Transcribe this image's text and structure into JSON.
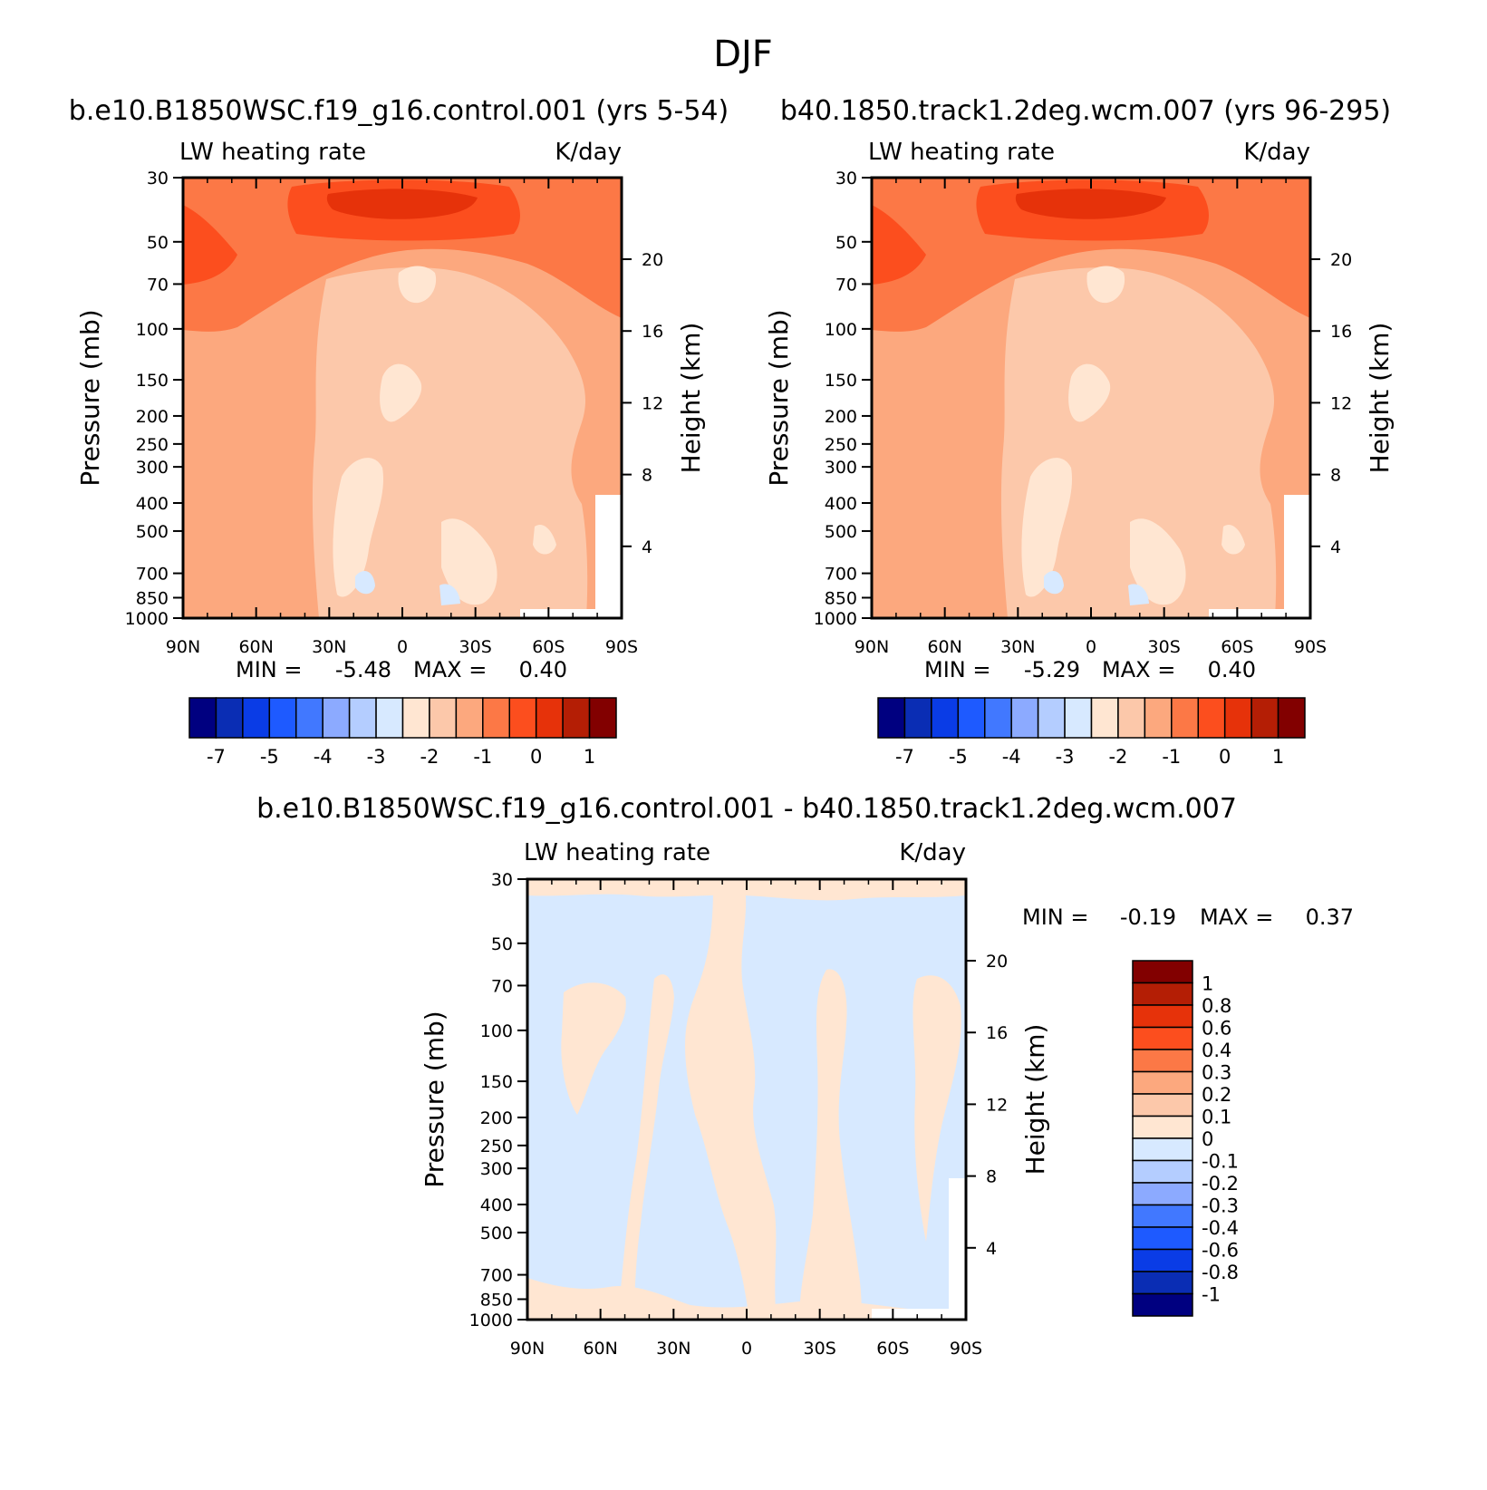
{
  "figure_title": "DJF",
  "chart_data": [
    {
      "type": "heatmap",
      "id": "panel1",
      "title": "b.e10.B1850WSC.f19_g16.control.001 (yrs 5-54)",
      "left_label": "LW heating rate",
      "right_label": "K/day",
      "xlabel": "",
      "ylabel": "Pressure (mb)",
      "y2label": "Height (km)",
      "x_ticks": [
        "90N",
        "60N",
        "30N",
        "0",
        "30S",
        "60S",
        "90S"
      ],
      "y_ticks": [
        "30",
        "50",
        "70",
        "100",
        "150",
        "200",
        "250",
        "300",
        "400",
        "500",
        "700",
        "850",
        "1000"
      ],
      "y2_ticks": [
        "20",
        "16",
        "12",
        "8",
        "4"
      ],
      "stats": {
        "min_label": "MIN =",
        "min": "-5.48",
        "max_label": "MAX =",
        "max": "0.40"
      },
      "colorbar_labels": [
        "-7",
        "-5",
        "-4",
        "-3",
        "-2",
        "-1",
        "0",
        "1"
      ]
    },
    {
      "type": "heatmap",
      "id": "panel2",
      "title": "b40.1850.track1.2deg.wcm.007 (yrs 96-295)",
      "left_label": "LW heating rate",
      "right_label": "K/day",
      "xlabel": "",
      "ylabel": "Pressure (mb)",
      "y2label": "Height (km)",
      "x_ticks": [
        "90N",
        "60N",
        "30N",
        "0",
        "30S",
        "60S",
        "90S"
      ],
      "y_ticks": [
        "30",
        "50",
        "70",
        "100",
        "150",
        "200",
        "250",
        "300",
        "400",
        "500",
        "700",
        "850",
        "1000"
      ],
      "y2_ticks": [
        "20",
        "16",
        "12",
        "8",
        "4"
      ],
      "stats": {
        "min_label": "MIN =",
        "min": "-5.29",
        "max_label": "MAX =",
        "max": "0.40"
      },
      "colorbar_labels": [
        "-7",
        "-5",
        "-4",
        "-3",
        "-2",
        "-1",
        "0",
        "1"
      ]
    },
    {
      "type": "heatmap",
      "id": "panel3",
      "title": "b.e10.B1850WSC.f19_g16.control.001 - b40.1850.track1.2deg.wcm.007",
      "left_label": "LW heating rate",
      "right_label": "K/day",
      "xlabel": "",
      "ylabel": "Pressure (mb)",
      "y2label": "Height (km)",
      "x_ticks": [
        "90N",
        "60N",
        "30N",
        "0",
        "30S",
        "60S",
        "90S"
      ],
      "y_ticks": [
        "30",
        "50",
        "70",
        "100",
        "150",
        "200",
        "250",
        "300",
        "400",
        "500",
        "700",
        "850",
        "1000"
      ],
      "y2_ticks": [
        "20",
        "16",
        "12",
        "8",
        "4"
      ],
      "stats": {
        "min_label": "MIN =",
        "min": "-0.19",
        "max_label": "MAX =",
        "max": "0.37"
      },
      "colorbar_labels": [
        "1",
        "0.8",
        "0.6",
        "0.4",
        "0.3",
        "0.2",
        "0.1",
        "0",
        "-0.1",
        "-0.2",
        "-0.3",
        "-0.4",
        "-0.6",
        "-0.8",
        "-1"
      ]
    }
  ],
  "colors": {
    "palette": [
      "#000080",
      "#0a2db4",
      "#0a3ce6",
      "#1e5aff",
      "#4178ff",
      "#8caaff",
      "#b4cdff",
      "#d7e9ff",
      "#ffe6d2",
      "#fcc8aa",
      "#fca87e",
      "#fc7846",
      "#fc4e1e",
      "#e6320a",
      "#b41e05",
      "#820000"
    ],
    "ref_bg": "#fca87e",
    "ref_mid": "#fcc8aa",
    "ref_light": "#ffe6d2",
    "ref_band": "#fc7846",
    "ref_core": "#fc4e1e",
    "ref_peak": "#e6320a",
    "ref_blue": "#d7e9ff",
    "diff_bg": "#d7e9ff",
    "diff_pos": "#ffe6d2"
  }
}
